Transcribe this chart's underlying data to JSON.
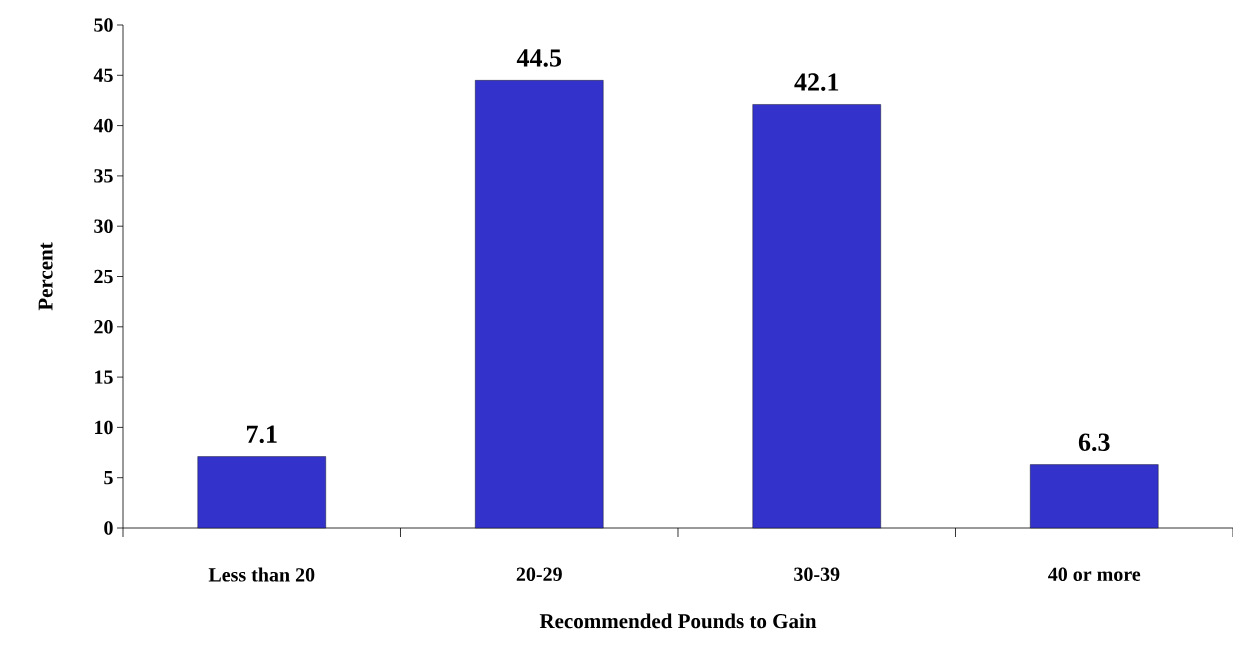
{
  "chart_data": {
    "type": "bar",
    "xlabel": "Recommended Pounds to Gain",
    "ylabel": "Percent",
    "categories": [
      "Less than 20",
      "20-29",
      "30-39",
      "40 or more"
    ],
    "values": [
      7.1,
      44.5,
      42.1,
      6.3
    ],
    "color": "#3333cc",
    "ylim": [
      0,
      50
    ],
    "yticks": [
      0,
      5,
      10,
      15,
      20,
      25,
      30,
      35,
      40,
      45,
      50
    ],
    "data_labels": true
  }
}
